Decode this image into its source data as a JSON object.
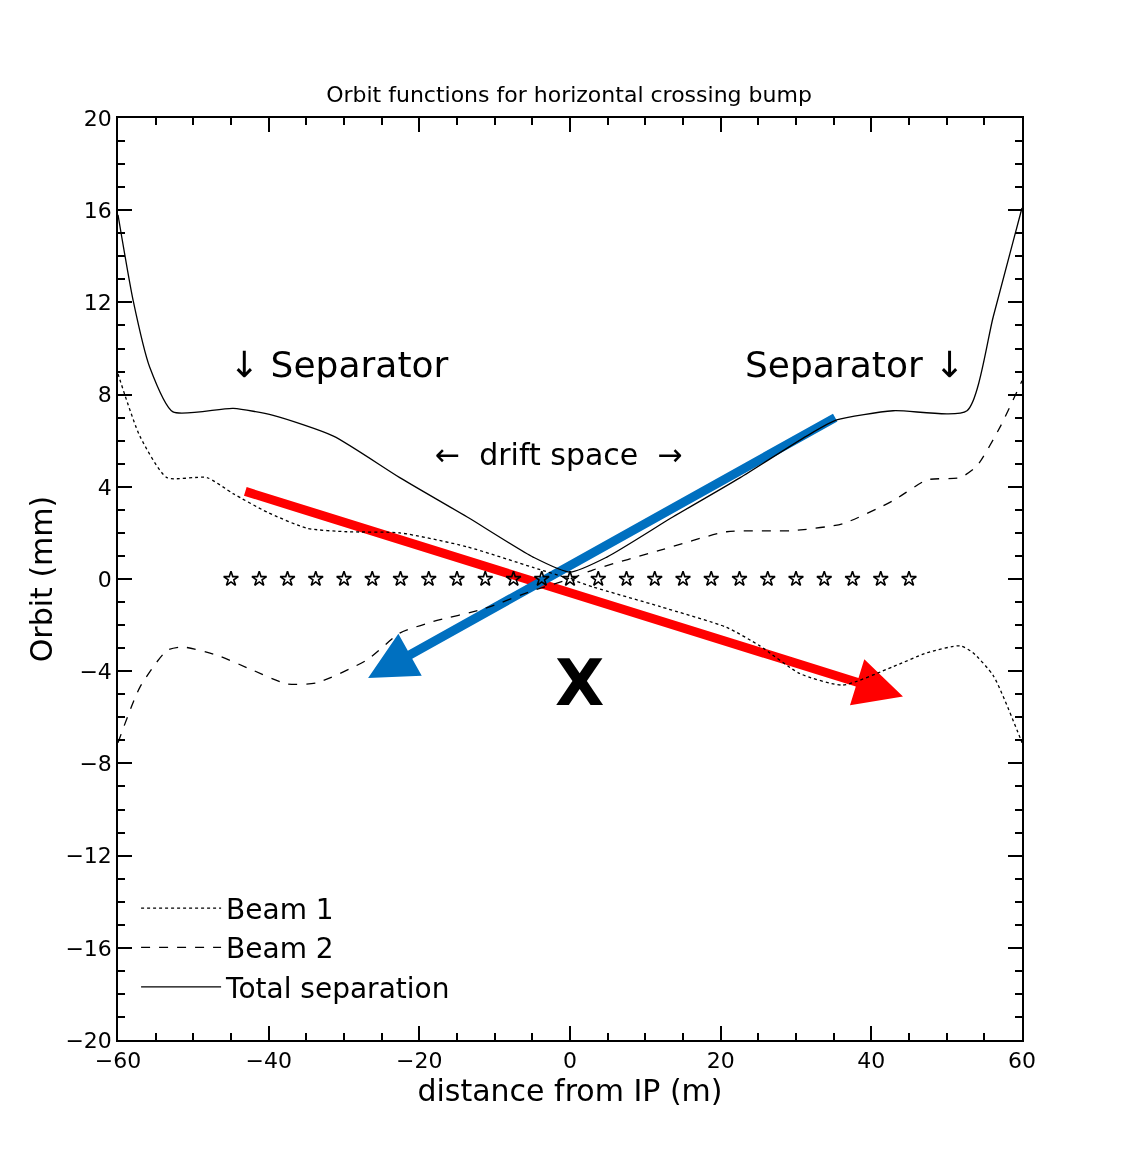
{
  "chart_data": {
    "type": "line",
    "title": "Orbit functions for horizontal crossing bump",
    "xlabel": "distance from IP (m)",
    "ylabel": "Orbit (mm)",
    "xlim": [
      -60,
      60
    ],
    "xticks": [
      -60,
      -40,
      -20,
      0,
      20,
      40,
      60
    ],
    "ylim": [
      -20,
      20
    ],
    "yticks": [
      -20,
      -16,
      -12,
      -8,
      -4,
      0,
      4,
      8,
      12,
      16,
      20
    ],
    "grid": false,
    "legend": "bottom left",
    "annotations": [
      "↓ Separator",
      "Separator ↓",
      "←  drift space  →",
      "X"
    ],
    "series": [
      {
        "name": "Beam 1",
        "color": "#000000",
        "line_style": "dotted",
        "marker": "none",
        "x": [
          -60,
          -57.1,
          -53.5,
          -48.2,
          -44.7,
          -40.2,
          -34.9,
          -29.6,
          -22.6,
          -13.7,
          -4.9,
          0,
          3.1,
          12,
          20.8,
          25.2,
          30.5,
          36.2,
          42.9,
          47.4,
          51.8,
          53.5,
          56.2,
          60
        ],
        "values": [
          8.9,
          6.2,
          4.4,
          4.4,
          3.7,
          2.9,
          2.2,
          2.05,
          2.0,
          1.4,
          0.5,
          0,
          -0.35,
          -1.2,
          -2.1,
          -2.9,
          -4.1,
          -4.6,
          -3.8,
          -3.2,
          -2.9,
          -3.2,
          -4.2,
          -7.1
        ]
      },
      {
        "name": "Beam 2",
        "color": "#000000",
        "line_style": "dashed",
        "marker": "none",
        "x": [
          -60,
          -57.1,
          -53.5,
          -51.4,
          -46.9,
          -42.5,
          -37.6,
          -33.6,
          -26.9,
          -22.6,
          -18.2,
          -11.5,
          -4.9,
          0,
          3.1,
          12,
          20.8,
          29.6,
          36.2,
          42.9,
          47.4,
          51.8,
          54,
          57.1,
          60
        ],
        "values": [
          -7.1,
          -4.7,
          -3.1,
          -2.95,
          -3.3,
          -3.9,
          -4.55,
          -4.5,
          -3.5,
          -2.35,
          -1.85,
          -1.3,
          -0.5,
          0,
          0.4,
          1.25,
          2.05,
          2.1,
          2.4,
          3.4,
          4.3,
          4.4,
          4.9,
          6.6,
          8.6
        ]
      },
      {
        "name": "Total separation",
        "color": "#000000",
        "line_style": "solid",
        "marker": "none",
        "x": [
          -60,
          -58,
          -55.8,
          -52.7,
          -44.7,
          -39.4,
          -31.4,
          -22.6,
          -13.7,
          -4.9,
          0,
          4.9,
          13.7,
          22.6,
          31.4,
          35.4,
          42.9,
          52.7,
          56.2,
          60
        ],
        "values": [
          15.8,
          12.1,
          9.2,
          7.25,
          7.4,
          7.1,
          6.2,
          4.4,
          2.7,
          0.95,
          0.3,
          0.95,
          2.7,
          4.4,
          6.2,
          6.9,
          7.3,
          7.3,
          11.4,
          16.1
        ]
      },
      {
        "type": "scatter",
        "color": "#000000",
        "marker": "star",
        "x": [
          -45,
          -41.25,
          -37.5,
          -33.75,
          -30,
          -26.25,
          -22.5,
          -18.75,
          -15,
          -11.25,
          -7.5,
          -3.75,
          0,
          3.75,
          7.5,
          11.25,
          15,
          18.75,
          22.5,
          26.25,
          30,
          33.75,
          37.5,
          41.25,
          45
        ],
        "values": [
          0,
          0,
          0,
          0,
          0,
          0,
          0,
          0,
          0,
          0,
          0,
          0,
          0,
          0,
          0,
          0,
          0,
          0,
          0,
          0,
          0,
          0,
          0,
          0,
          0
        ]
      }
    ]
  }
}
